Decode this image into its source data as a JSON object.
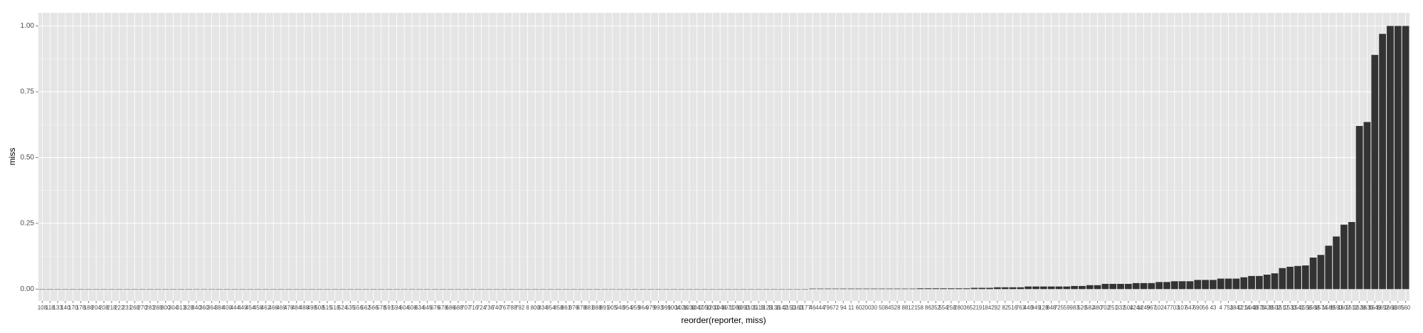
{
  "chart_data": {
    "type": "bar",
    "x_label": "reorder(reporter, miss)",
    "y_label": "miss",
    "categories": [
      "108",
      "118",
      "133",
      "140",
      "170",
      "178",
      "188",
      "204",
      "208",
      "218",
      "222",
      "231",
      "268",
      "270",
      "283",
      "288",
      "300",
      "304",
      "313",
      "328",
      "340",
      "360",
      "364",
      "384",
      "400",
      "444",
      "449",
      "454",
      "458",
      "462",
      "466",
      "469",
      "478",
      "484",
      "488",
      "498",
      "508",
      "515",
      "518",
      "524",
      "535",
      "556",
      "562",
      "566",
      "578",
      "591",
      "594",
      "604",
      "608",
      "634",
      "645",
      "676",
      "678",
      "686",
      "688",
      "707",
      "716",
      "724",
      "736",
      "740",
      "767",
      "788",
      "792",
      "8",
      "800",
      "834",
      "854",
      "858",
      "861",
      "876",
      "878",
      "881",
      "888",
      "891",
      "905",
      "940",
      "954",
      "959",
      "964",
      "979",
      "993",
      "999",
      "1004",
      "1026",
      "1030",
      "1047",
      "1050",
      "1203",
      "1046",
      "1071",
      "1080",
      "1093",
      "1105",
      "1118",
      "1129",
      "1136",
      "1142",
      "1150",
      "1163",
      "1177",
      "46",
      "444",
      "796",
      "72",
      "94",
      "11",
      "60",
      "200",
      "30",
      "50",
      "845",
      "28",
      "88",
      "121",
      "58",
      "86",
      "352",
      "554",
      "258",
      "280",
      "36",
      "521",
      "91",
      "842",
      "92",
      "82",
      "516",
      "763",
      "440",
      "949",
      "128",
      "848",
      "725",
      "59",
      "983",
      "520",
      "582",
      "480",
      "702",
      "251",
      "332",
      "504",
      "1244",
      "1249",
      "967",
      "102",
      "47",
      "703",
      "107",
      "647",
      "690",
      "56",
      "43",
      "4",
      "753",
      "1847",
      "1214",
      "1048",
      "1375",
      "1428",
      "1502",
      "1517",
      "1533",
      "1541",
      "1556",
      "1568",
      "1574",
      "1589",
      "1593",
      "1607",
      "1612",
      "1628",
      "1635",
      "1649",
      "1652",
      "1666",
      "1385",
      "560"
    ],
    "values": [
      0,
      0,
      0,
      0,
      0,
      0,
      0,
      0,
      0,
      0,
      0,
      0,
      0,
      0,
      0,
      0,
      0,
      0,
      0,
      0,
      0,
      0,
      0,
      0,
      0,
      0,
      0,
      0,
      0,
      0,
      0,
      0,
      0,
      0,
      0,
      0,
      0,
      0,
      0,
      0,
      0,
      0,
      0,
      0,
      0,
      0,
      0,
      0,
      0,
      0,
      0,
      0,
      0,
      0,
      0,
      0,
      0,
      0,
      0,
      0,
      0,
      0,
      0,
      0,
      0,
      0,
      0,
      0,
      0,
      0,
      0,
      0,
      0,
      0,
      0,
      0,
      0,
      0,
      0,
      0,
      0,
      0,
      0,
      0,
      0,
      0,
      0,
      0,
      0,
      0,
      0,
      0,
      0,
      0,
      0,
      0,
      0,
      0,
      0,
      0,
      0.002,
      0.002,
      0.002,
      0.002,
      0.002,
      0.002,
      0.002,
      0.002,
      0.002,
      0.002,
      0.002,
      0.002,
      0.002,
      0.002,
      0.003,
      0.003,
      0.003,
      0.003,
      0.003,
      0.003,
      0.003,
      0.005,
      0.005,
      0.005,
      0.007,
      0.007,
      0.007,
      0.007,
      0.01,
      0.01,
      0.01,
      0.01,
      0.01,
      0.01,
      0.012,
      0.012,
      0.015,
      0.015,
      0.02,
      0.02,
      0.02,
      0.02,
      0.023,
      0.023,
      0.023,
      0.027,
      0.027,
      0.03,
      0.03,
      0.03,
      0.035,
      0.035,
      0.035,
      0.04,
      0.04,
      0.04,
      0.045,
      0.05,
      0.05,
      0.055,
      0.06,
      0.08,
      0.085,
      0.088,
      0.09,
      0.12,
      0.13,
      0.165,
      0.2,
      0.245,
      0.255,
      0.62,
      0.635,
      0.89,
      0.97,
      1,
      1,
      1
    ],
    "color": "#333333",
    "ylim": [
      -0.045,
      1.05
    ],
    "yticks": [
      {
        "value": 0,
        "label": "0.00"
      },
      {
        "value": 0.25,
        "label": "0.25"
      },
      {
        "value": 0.5,
        "label": "0.50"
      },
      {
        "value": 0.75,
        "label": "0.75"
      },
      {
        "value": 1,
        "label": "1.00"
      }
    ],
    "grid": true
  }
}
